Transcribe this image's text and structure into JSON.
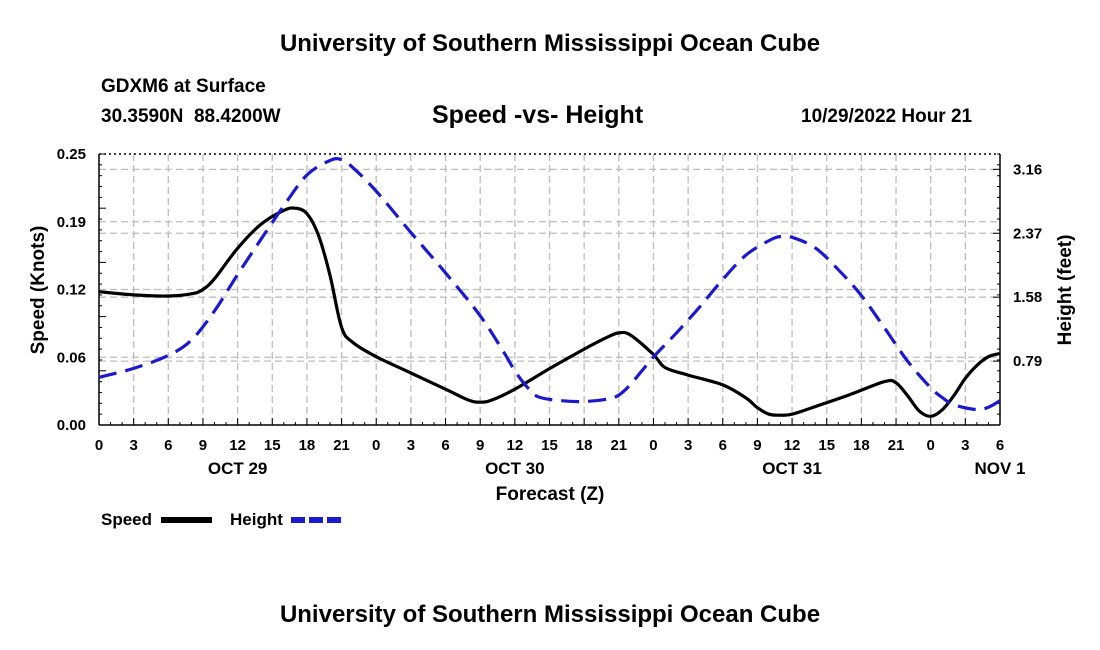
{
  "page": {
    "title_top": "University of Southern Mississippi Ocean Cube",
    "title_bottom": "University of Southern Mississippi Ocean Cube",
    "station": "GDXM6 at Surface",
    "coords": "30.3590N  88.4200W",
    "chart_title": "Speed -vs- Height",
    "datetime": "10/29/2022 Hour 21"
  },
  "chart_data": {
    "type": "line",
    "title": "Speed -vs- Height",
    "xlabel": "Forecast (Z)",
    "ylabel_left": "Speed (Knots)",
    "ylabel_right": "Height (feet)",
    "x_hours_range": [
      0,
      78
    ],
    "x_tick_labels": [
      "0",
      "3",
      "6",
      "9",
      "12",
      "15",
      "18",
      "21",
      "0",
      "3",
      "6",
      "9",
      "12",
      "15",
      "18",
      "21",
      "0",
      "3",
      "6",
      "9",
      "12",
      "15",
      "18",
      "21",
      "0",
      "3",
      "6"
    ],
    "date_labels": [
      {
        "label": "OCT 29",
        "hour": 12
      },
      {
        "label": "OCT 30",
        "hour": 36
      },
      {
        "label": "OCT 31",
        "hour": 60
      },
      {
        "label": "NOV 1",
        "hour": 78
      }
    ],
    "ylim_left": [
      0,
      0.25
    ],
    "left_ticks": [
      "0.00",
      "0.06",
      "0.12",
      "0.19",
      "0.25"
    ],
    "ylim_right": [
      0,
      3.35
    ],
    "right_ticks": [
      {
        "label": "0.79",
        "value": 0.79
      },
      {
        "label": "1.58",
        "value": 1.58
      },
      {
        "label": "2.37",
        "value": 2.37
      },
      {
        "label": "3.16",
        "value": 3.16
      }
    ],
    "grid": true,
    "series": [
      {
        "name": "Speed",
        "color": "#000000",
        "axis": "left",
        "dash": "solid",
        "points": [
          [
            0,
            0.123
          ],
          [
            3,
            0.12
          ],
          [
            6,
            0.119
          ],
          [
            8,
            0.121
          ],
          [
            9,
            0.125
          ],
          [
            10,
            0.135
          ],
          [
            12,
            0.163
          ],
          [
            14,
            0.185
          ],
          [
            16,
            0.198
          ],
          [
            17,
            0.2
          ],
          [
            18,
            0.195
          ],
          [
            19,
            0.175
          ],
          [
            20,
            0.138
          ],
          [
            21,
            0.09
          ],
          [
            22,
            0.076
          ],
          [
            24,
            0.063
          ],
          [
            27,
            0.048
          ],
          [
            30,
            0.033
          ],
          [
            32,
            0.023
          ],
          [
            33,
            0.021
          ],
          [
            34,
            0.023
          ],
          [
            36,
            0.033
          ],
          [
            39,
            0.052
          ],
          [
            42,
            0.07
          ],
          [
            44,
            0.081
          ],
          [
            45,
            0.085
          ],
          [
            46,
            0.083
          ],
          [
            48,
            0.065
          ],
          [
            49,
            0.053
          ],
          [
            51,
            0.046
          ],
          [
            54,
            0.037
          ],
          [
            56,
            0.025
          ],
          [
            57,
            0.016
          ],
          [
            58,
            0.01
          ],
          [
            59,
            0.009
          ],
          [
            60,
            0.01
          ],
          [
            62,
            0.017
          ],
          [
            65,
            0.028
          ],
          [
            68,
            0.04
          ],
          [
            69,
            0.039
          ],
          [
            70,
            0.027
          ],
          [
            71,
            0.013
          ],
          [
            72,
            0.008
          ],
          [
            73,
            0.014
          ],
          [
            74,
            0.027
          ],
          [
            75,
            0.043
          ],
          [
            76,
            0.055
          ],
          [
            77,
            0.063
          ],
          [
            78,
            0.066
          ]
        ]
      },
      {
        "name": "Height",
        "color": "#1a1acc",
        "axis": "right",
        "dash": "long-dash",
        "points": [
          [
            0,
            0.59
          ],
          [
            3,
            0.7
          ],
          [
            6,
            0.86
          ],
          [
            8,
            1.05
          ],
          [
            10,
            1.41
          ],
          [
            12,
            1.86
          ],
          [
            14,
            2.29
          ],
          [
            16,
            2.71
          ],
          [
            18,
            3.09
          ],
          [
            20,
            3.27
          ],
          [
            21,
            3.28
          ],
          [
            22,
            3.18
          ],
          [
            24,
            2.89
          ],
          [
            27,
            2.38
          ],
          [
            30,
            1.88
          ],
          [
            33,
            1.35
          ],
          [
            35,
            0.91
          ],
          [
            36,
            0.67
          ],
          [
            37,
            0.48
          ],
          [
            38,
            0.35
          ],
          [
            40,
            0.3
          ],
          [
            42,
            0.29
          ],
          [
            44,
            0.32
          ],
          [
            45,
            0.37
          ],
          [
            46,
            0.5
          ],
          [
            48,
            0.84
          ],
          [
            50,
            1.14
          ],
          [
            52,
            1.46
          ],
          [
            54,
            1.8
          ],
          [
            56,
            2.1
          ],
          [
            58,
            2.28
          ],
          [
            59,
            2.33
          ],
          [
            60,
            2.32
          ],
          [
            62,
            2.19
          ],
          [
            64,
            1.92
          ],
          [
            66,
            1.6
          ],
          [
            68,
            1.2
          ],
          [
            70,
            0.79
          ],
          [
            72,
            0.46
          ],
          [
            73,
            0.34
          ],
          [
            74,
            0.25
          ],
          [
            76,
            0.19
          ],
          [
            77,
            0.22
          ],
          [
            78,
            0.3
          ]
        ]
      }
    ],
    "legend": {
      "placement": "bottom-left",
      "entries": [
        "Speed",
        "Height"
      ]
    }
  }
}
